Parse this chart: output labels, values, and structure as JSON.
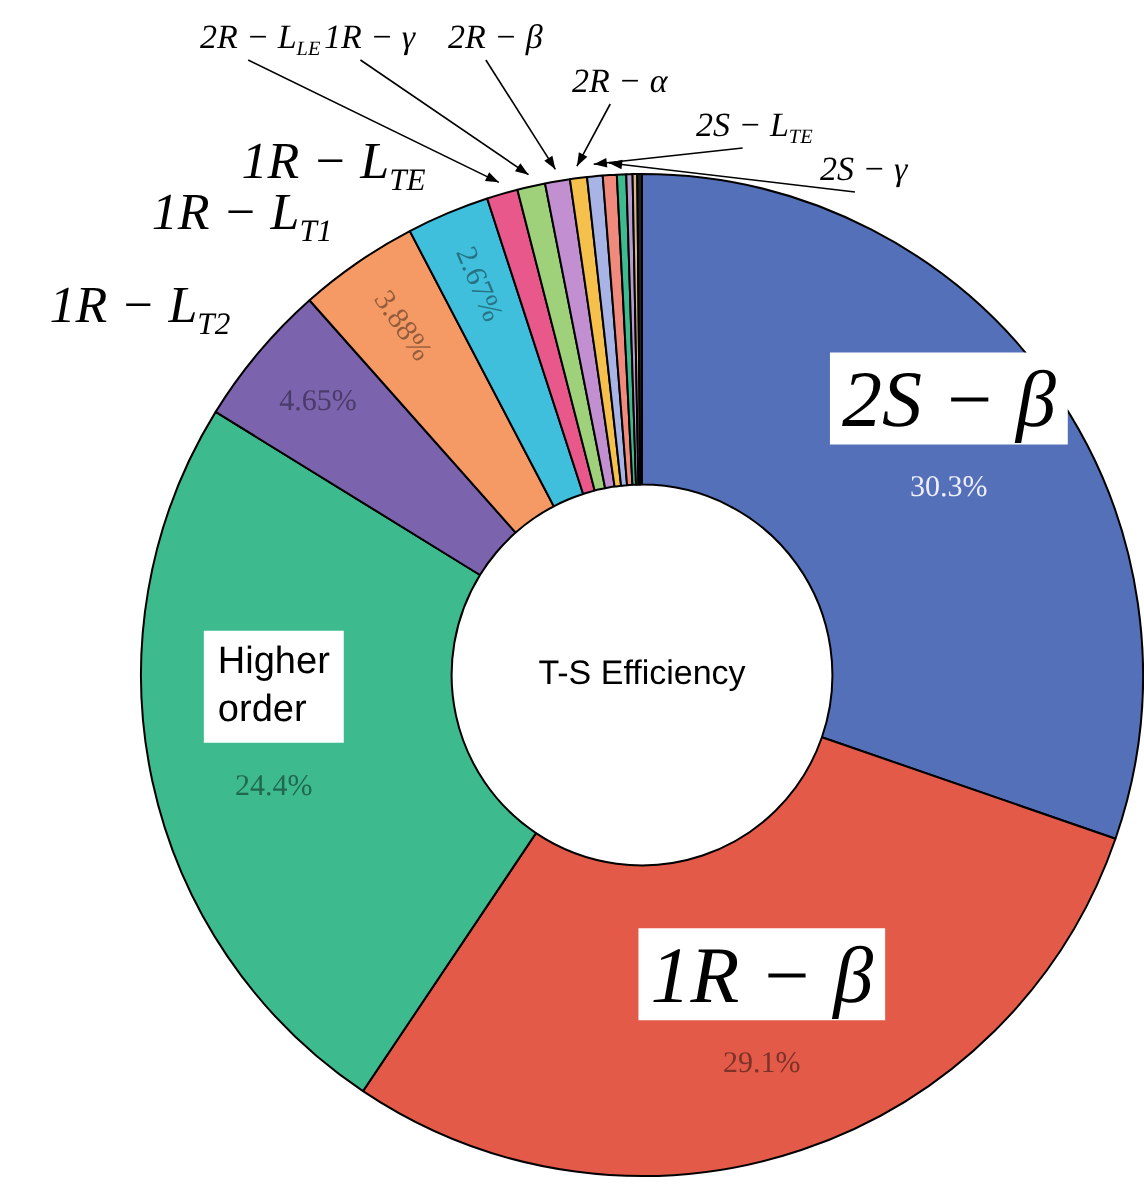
{
  "chart_data": {
    "type": "donut",
    "title": "T-S Efficiency",
    "categories": [
      "2S − β",
      "1R − β",
      "Higher order",
      "1R − L$_{T2}$",
      "1R − L$_{T1}$",
      "1R − L$_{TE}$",
      "2R − L$_{LE}$",
      "1R − γ",
      "2R − β",
      "2R − α",
      "2S − L$_{TE}$",
      "2S − γ",
      null,
      null,
      null,
      null
    ],
    "values": [
      30.3,
      29.1,
      24.4,
      4.65,
      3.88,
      2.67,
      1.0,
      0.9,
      0.8,
      0.55,
      0.5,
      0.45,
      0.3,
      0.2,
      0.15,
      0.15
    ],
    "colors": [
      "#5470b8",
      "#e35a48",
      "#3dbb8f",
      "#7b63ad",
      "#f59a64",
      "#40bfdc",
      "#e8588a",
      "#9ed17a",
      "#c28fd0",
      "#f5c04c",
      "#a9b4e6",
      "#f08a7c",
      "#3dbb8f",
      "#b89ed0",
      "#d9b48c",
      "#222222"
    ],
    "value_labels": [
      "30.3%",
      "29.1%",
      "24.4%",
      "4.65%",
      "3.88%",
      "2.67%",
      null,
      null,
      null,
      null,
      null,
      null,
      null,
      null,
      null,
      null
    ]
  }
}
